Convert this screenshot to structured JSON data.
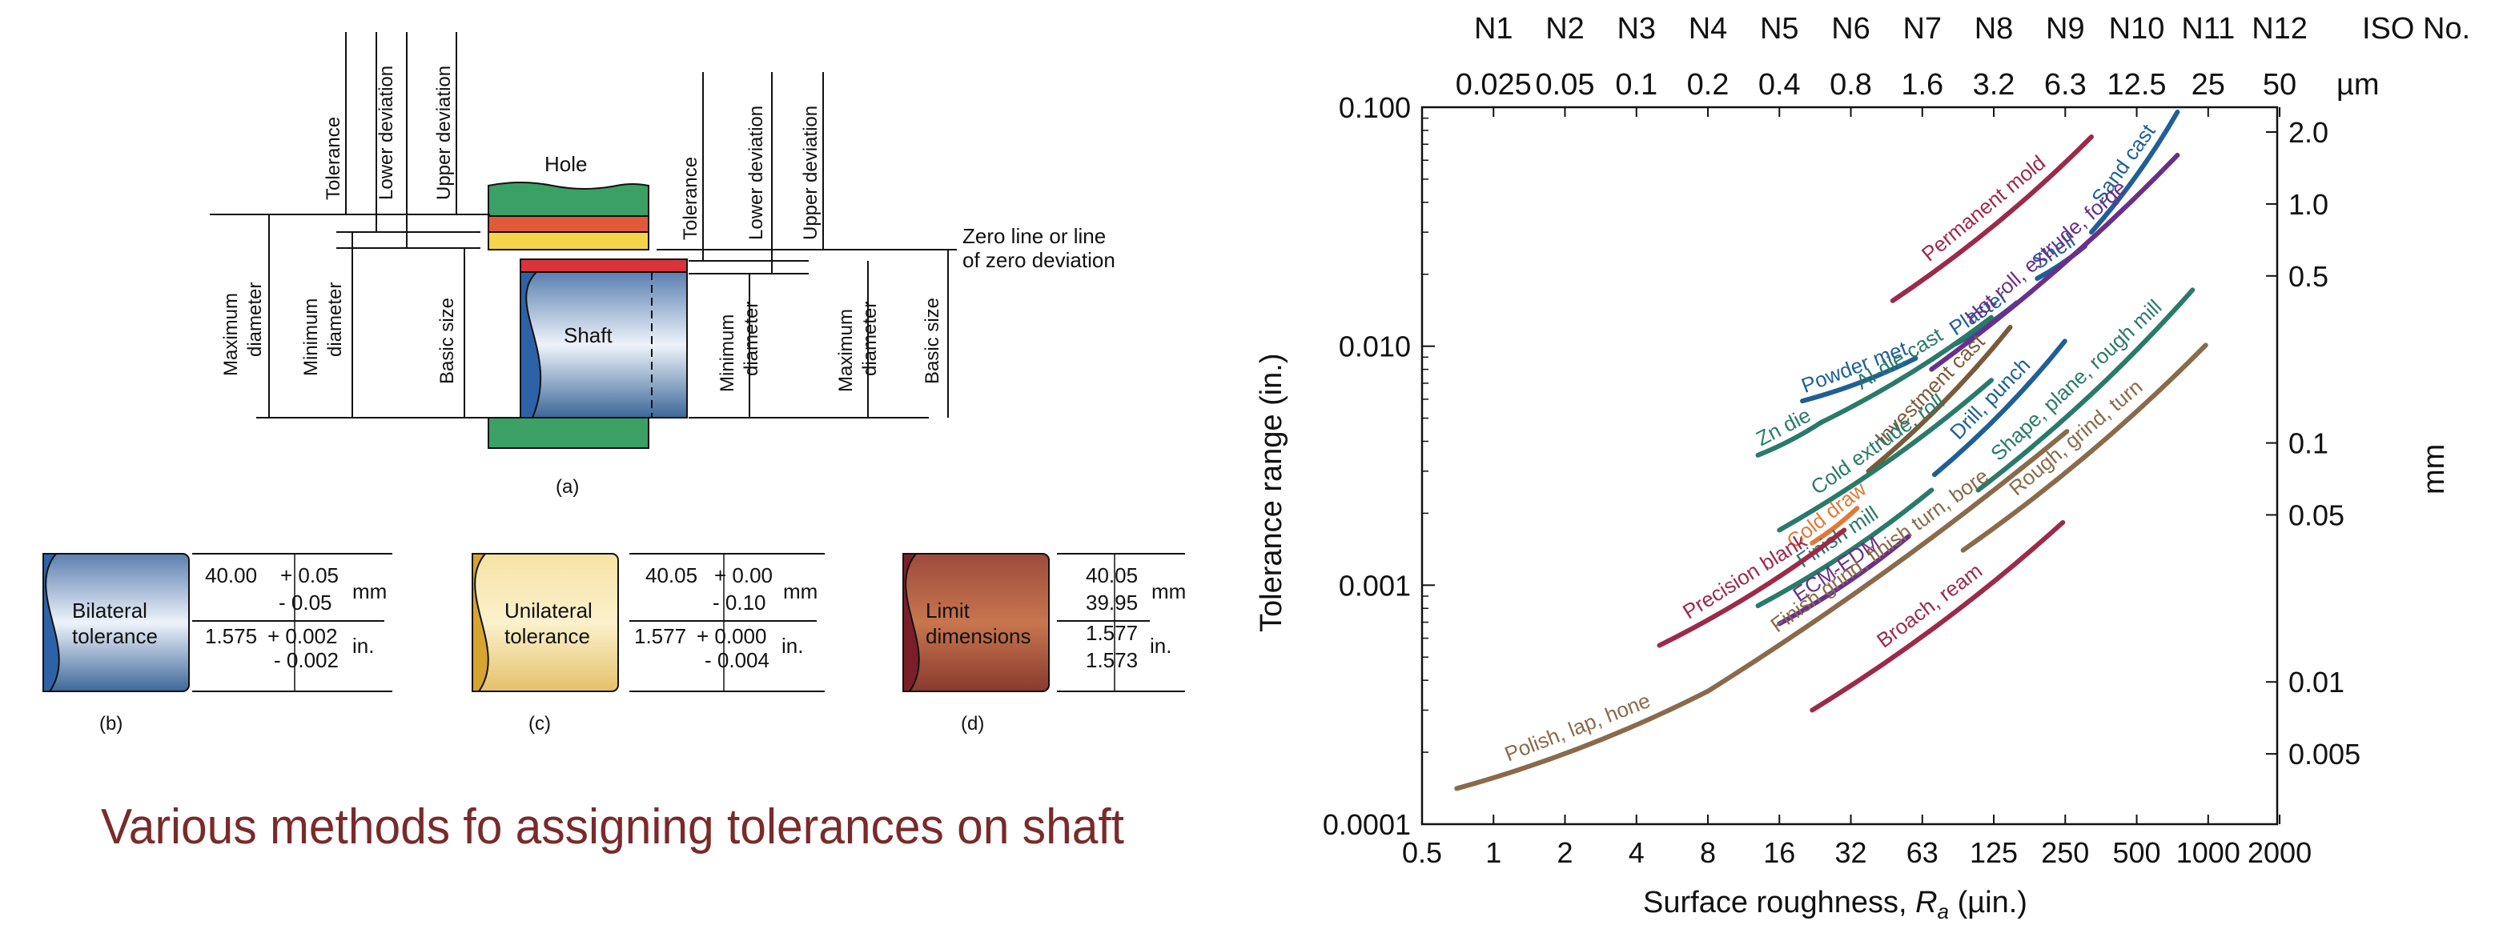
{
  "left_figure": {
    "panel_a": {
      "hole_label": "Hole",
      "shaft_label": "Shaft",
      "zero_line_1": "Zero line or line",
      "zero_line_2": "of zero deviation",
      "hole_dims": [
        "Tolerance",
        "Lower deviation",
        "Upper deviation"
      ],
      "shaft_dims": [
        "Tolerance",
        "Lower deviation",
        "Upper deviation"
      ],
      "left_side": [
        "Maximum diameter",
        "Minimum diameter",
        "Basic size"
      ],
      "right_side": [
        "Minimum diameter",
        "Maximum diameter",
        "Basic size"
      ],
      "panel_label": "(a)"
    },
    "panel_b": {
      "label_1": "Bilateral",
      "label_2": "tolerance",
      "mm_main": "40.00",
      "mm_plus": "+ 0.05",
      "mm_minus": "- 0.05",
      "mm_unit": "mm",
      "in_main": "1.575",
      "in_plus": "+ 0.002",
      "in_minus": "- 0.002",
      "in_unit": "in.",
      "panel_label": "(b)"
    },
    "panel_c": {
      "label_1": "Unilateral",
      "label_2": "tolerance",
      "mm_main": "40.05",
      "mm_plus": "+ 0.00",
      "mm_minus": "- 0.10",
      "mm_unit": "mm",
      "in_main": "1.577",
      "in_plus": "+ 0.000",
      "in_minus": "- 0.004",
      "in_unit": "in.",
      "panel_label": "(c)"
    },
    "panel_d": {
      "label_1": "Limit",
      "label_2": "dimensions",
      "mm_upper": "40.05",
      "mm_lower": "39.95",
      "mm_unit": "mm",
      "in_upper": "1.577",
      "in_lower": "1.573",
      "in_unit": "in.",
      "panel_label": "(d)"
    },
    "caption": "Various methods fo assigning tolerances on shaft"
  },
  "chart_data": {
    "type": "line",
    "title": "",
    "xlabel_prefix": "Surface roughness, ",
    "xlabel_var": "R",
    "xlabel_sub": "a",
    "xlabel_suffix": " (µin.)",
    "ylabel": "Tolerance range (in.)",
    "y2label": "mm",
    "x_scale": "log2",
    "y_scale": "log10",
    "xlim": [
      0.5,
      2000
    ],
    "ylim": [
      0.0001,
      0.1
    ],
    "x_ticks": [
      "0.5",
      "1",
      "2",
      "4",
      "8",
      "16",
      "32",
      "63",
      "125",
      "250",
      "500",
      "1000",
      "2000"
    ],
    "y_ticks": [
      "0.0001",
      "0.001",
      "0.010",
      "0.100"
    ],
    "top_iso": [
      "N1",
      "N2",
      "N3",
      "N4",
      "N5",
      "N6",
      "N7",
      "N8",
      "N9",
      "N10",
      "N11",
      "N12"
    ],
    "top_iso_title": "ISO No.",
    "top_um": [
      "0.025",
      "0.05",
      "0.1",
      "0.2",
      "0.4",
      "0.8",
      "1.6",
      "3.2",
      "6.3",
      "12.5",
      "25",
      "50"
    ],
    "top_um_unit": "µm",
    "right_mm": [
      {
        "label": "2.0",
        "value": 2.0
      },
      {
        "label": "1.0",
        "value": 1.0
      },
      {
        "label": "0.5",
        "value": 0.5
      },
      {
        "label": "0.1",
        "value": 0.1
      },
      {
        "label": "0.05",
        "value": 0.05
      },
      {
        "label": "0.01",
        "value": 0.01
      },
      {
        "label": "0.005",
        "value": 0.005
      }
    ],
    "grid": false,
    "legend": "none",
    "series": [
      {
        "name": "Permanent mold",
        "color": "#9c2a4a",
        "x": [
          48,
          330
        ],
        "y": [
          0.0155,
          0.0752
        ]
      },
      {
        "name": "Sand cast",
        "color": "#1f5f96",
        "x": [
          330,
          760
        ],
        "y": [
          0.03,
          0.0955
        ]
      },
      {
        "name": "Shell",
        "color": "#1f5f96",
        "x": [
          195,
          310
        ],
        "y": [
          0.0192,
          0.0262
        ]
      },
      {
        "name": "Plaster",
        "color": "#1f5f96",
        "x": [
          88,
          160
        ],
        "y": [
          0.0102,
          0.0152
        ]
      },
      {
        "name": "Powder met",
        "color": "#1f5f96",
        "x": [
          20,
          60
        ],
        "y": [
          0.0059,
          0.0089
        ]
      },
      {
        "name": "Hot roll, extrude, forge",
        "color": "#6a2f8a",
        "x": [
          70,
          760
        ],
        "y": [
          0.008,
          0.063
        ]
      },
      {
        "name": "Al-die cast",
        "color": "#2a7a6a",
        "x": [
          24,
          125
        ],
        "y": [
          0.0048,
          0.0132
        ]
      },
      {
        "name": "Zn die",
        "color": "#2a7a6a",
        "x": [
          13,
          24
        ],
        "y": [
          0.0035,
          0.0048
        ]
      },
      {
        "name": "Investment cast",
        "color": "#7a5a3a",
        "x": [
          38,
          150
        ],
        "y": [
          0.003,
          0.012
        ]
      },
      {
        "name": "Cold extrude, roll",
        "color": "#2a7a6a",
        "x": [
          16,
          125
        ],
        "y": [
          0.0017,
          0.0072
        ]
      },
      {
        "name": "Drill, punch",
        "color": "#1f5f96",
        "x": [
          72,
          255
        ],
        "y": [
          0.0029,
          0.0105
        ]
      },
      {
        "name": "Shape, plane, rough mill",
        "color": "#2a7a6a",
        "x": [
          110,
          880
        ],
        "y": [
          0.0025,
          0.0172
        ]
      },
      {
        "name": "Cold draw",
        "color": "#e07a3a",
        "x": [
          22,
          34
        ],
        "y": [
          0.0015,
          0.0021
        ]
      },
      {
        "name": "Finish mill",
        "color": "#2a7a6a",
        "x": [
          13,
          70
        ],
        "y": [
          0.00082,
          0.0025
        ]
      },
      {
        "name": "Precision blank",
        "color": "#9c2a4a",
        "x": [
          5,
          30
        ],
        "y": [
          0.00056,
          0.0017
        ]
      },
      {
        "name": "ECM-EDM",
        "color": "#6a2f8a",
        "x": [
          16,
          56
        ],
        "y": [
          0.00069,
          0.0016
        ]
      },
      {
        "name": "Rough, grind, turn",
        "color": "#8a6a4a",
        "x": [
          95,
          1000
        ],
        "y": [
          0.0014,
          0.0101
        ]
      },
      {
        "name": "Finish grind, finish turn, bore",
        "color": "#8a6a4a",
        "x": [
          8,
          260
        ],
        "y": [
          0.00036,
          0.0044
        ]
      },
      {
        "name": "Broach, ream",
        "color": "#9c2a4a",
        "x": [
          22,
          250
        ],
        "y": [
          0.0003,
          0.00183
        ]
      },
      {
        "name": "Polish, lap, hone",
        "color": "#8a6a4a",
        "x": [
          0.7,
          8
        ],
        "y": [
          0.000141,
          0.00036
        ]
      }
    ]
  }
}
